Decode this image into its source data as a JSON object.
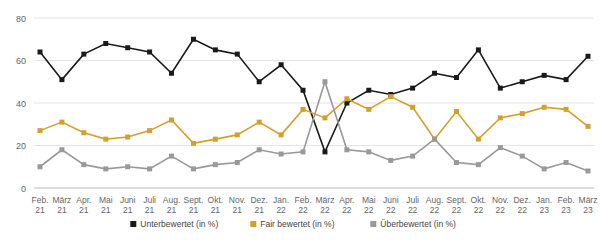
{
  "chart_data": {
    "type": "line",
    "categories": [
      "Feb. 21",
      "März 21",
      "Apr. 21",
      "Mai 21",
      "Juni 21",
      "Juli 21",
      "Aug. 21",
      "Sept. 21",
      "Okt. 21",
      "Nov. 21",
      "Dez. 21",
      "Jan. 22",
      "Feb. 22",
      "März 22",
      "Apr. 22",
      "Mai 22",
      "Juni 22",
      "Juli 22",
      "Aug. 22",
      "Sept. 22",
      "Okt. 22",
      "Nov. 22",
      "Dez. 22",
      "Jan. 23",
      "Feb. 23",
      "März 23"
    ],
    "series": [
      {
        "name": "Unterbewertet (in %)",
        "color": "#1a1a1a",
        "marker": "square",
        "values": [
          64,
          51,
          63,
          68,
          66,
          64,
          54,
          70,
          65,
          63,
          50,
          58,
          46,
          17,
          40,
          46,
          44,
          47,
          54,
          52,
          65,
          47,
          50,
          53,
          51,
          62
        ]
      },
      {
        "name": "Fair bewertet (in %)",
        "color": "#d4a02c",
        "marker": "square",
        "values": [
          27,
          31,
          26,
          23,
          24,
          27,
          32,
          21,
          23,
          25,
          31,
          25,
          37,
          33,
          42,
          37,
          43,
          38,
          23,
          36,
          23,
          33,
          35,
          38,
          37,
          29
        ]
      },
      {
        "name": "Überbewertet (in %)",
        "color": "#999999",
        "marker": "square",
        "values": [
          10,
          18,
          11,
          9,
          10,
          9,
          15,
          9,
          11,
          12,
          18,
          16,
          17,
          50,
          18,
          17,
          13,
          15,
          23,
          12,
          11,
          19,
          15,
          9,
          12,
          8
        ]
      }
    ],
    "ylim": [
      0,
      80
    ],
    "yticks": [
      0,
      20,
      40,
      60,
      80
    ],
    "grid": true,
    "legend": "bottom"
  }
}
